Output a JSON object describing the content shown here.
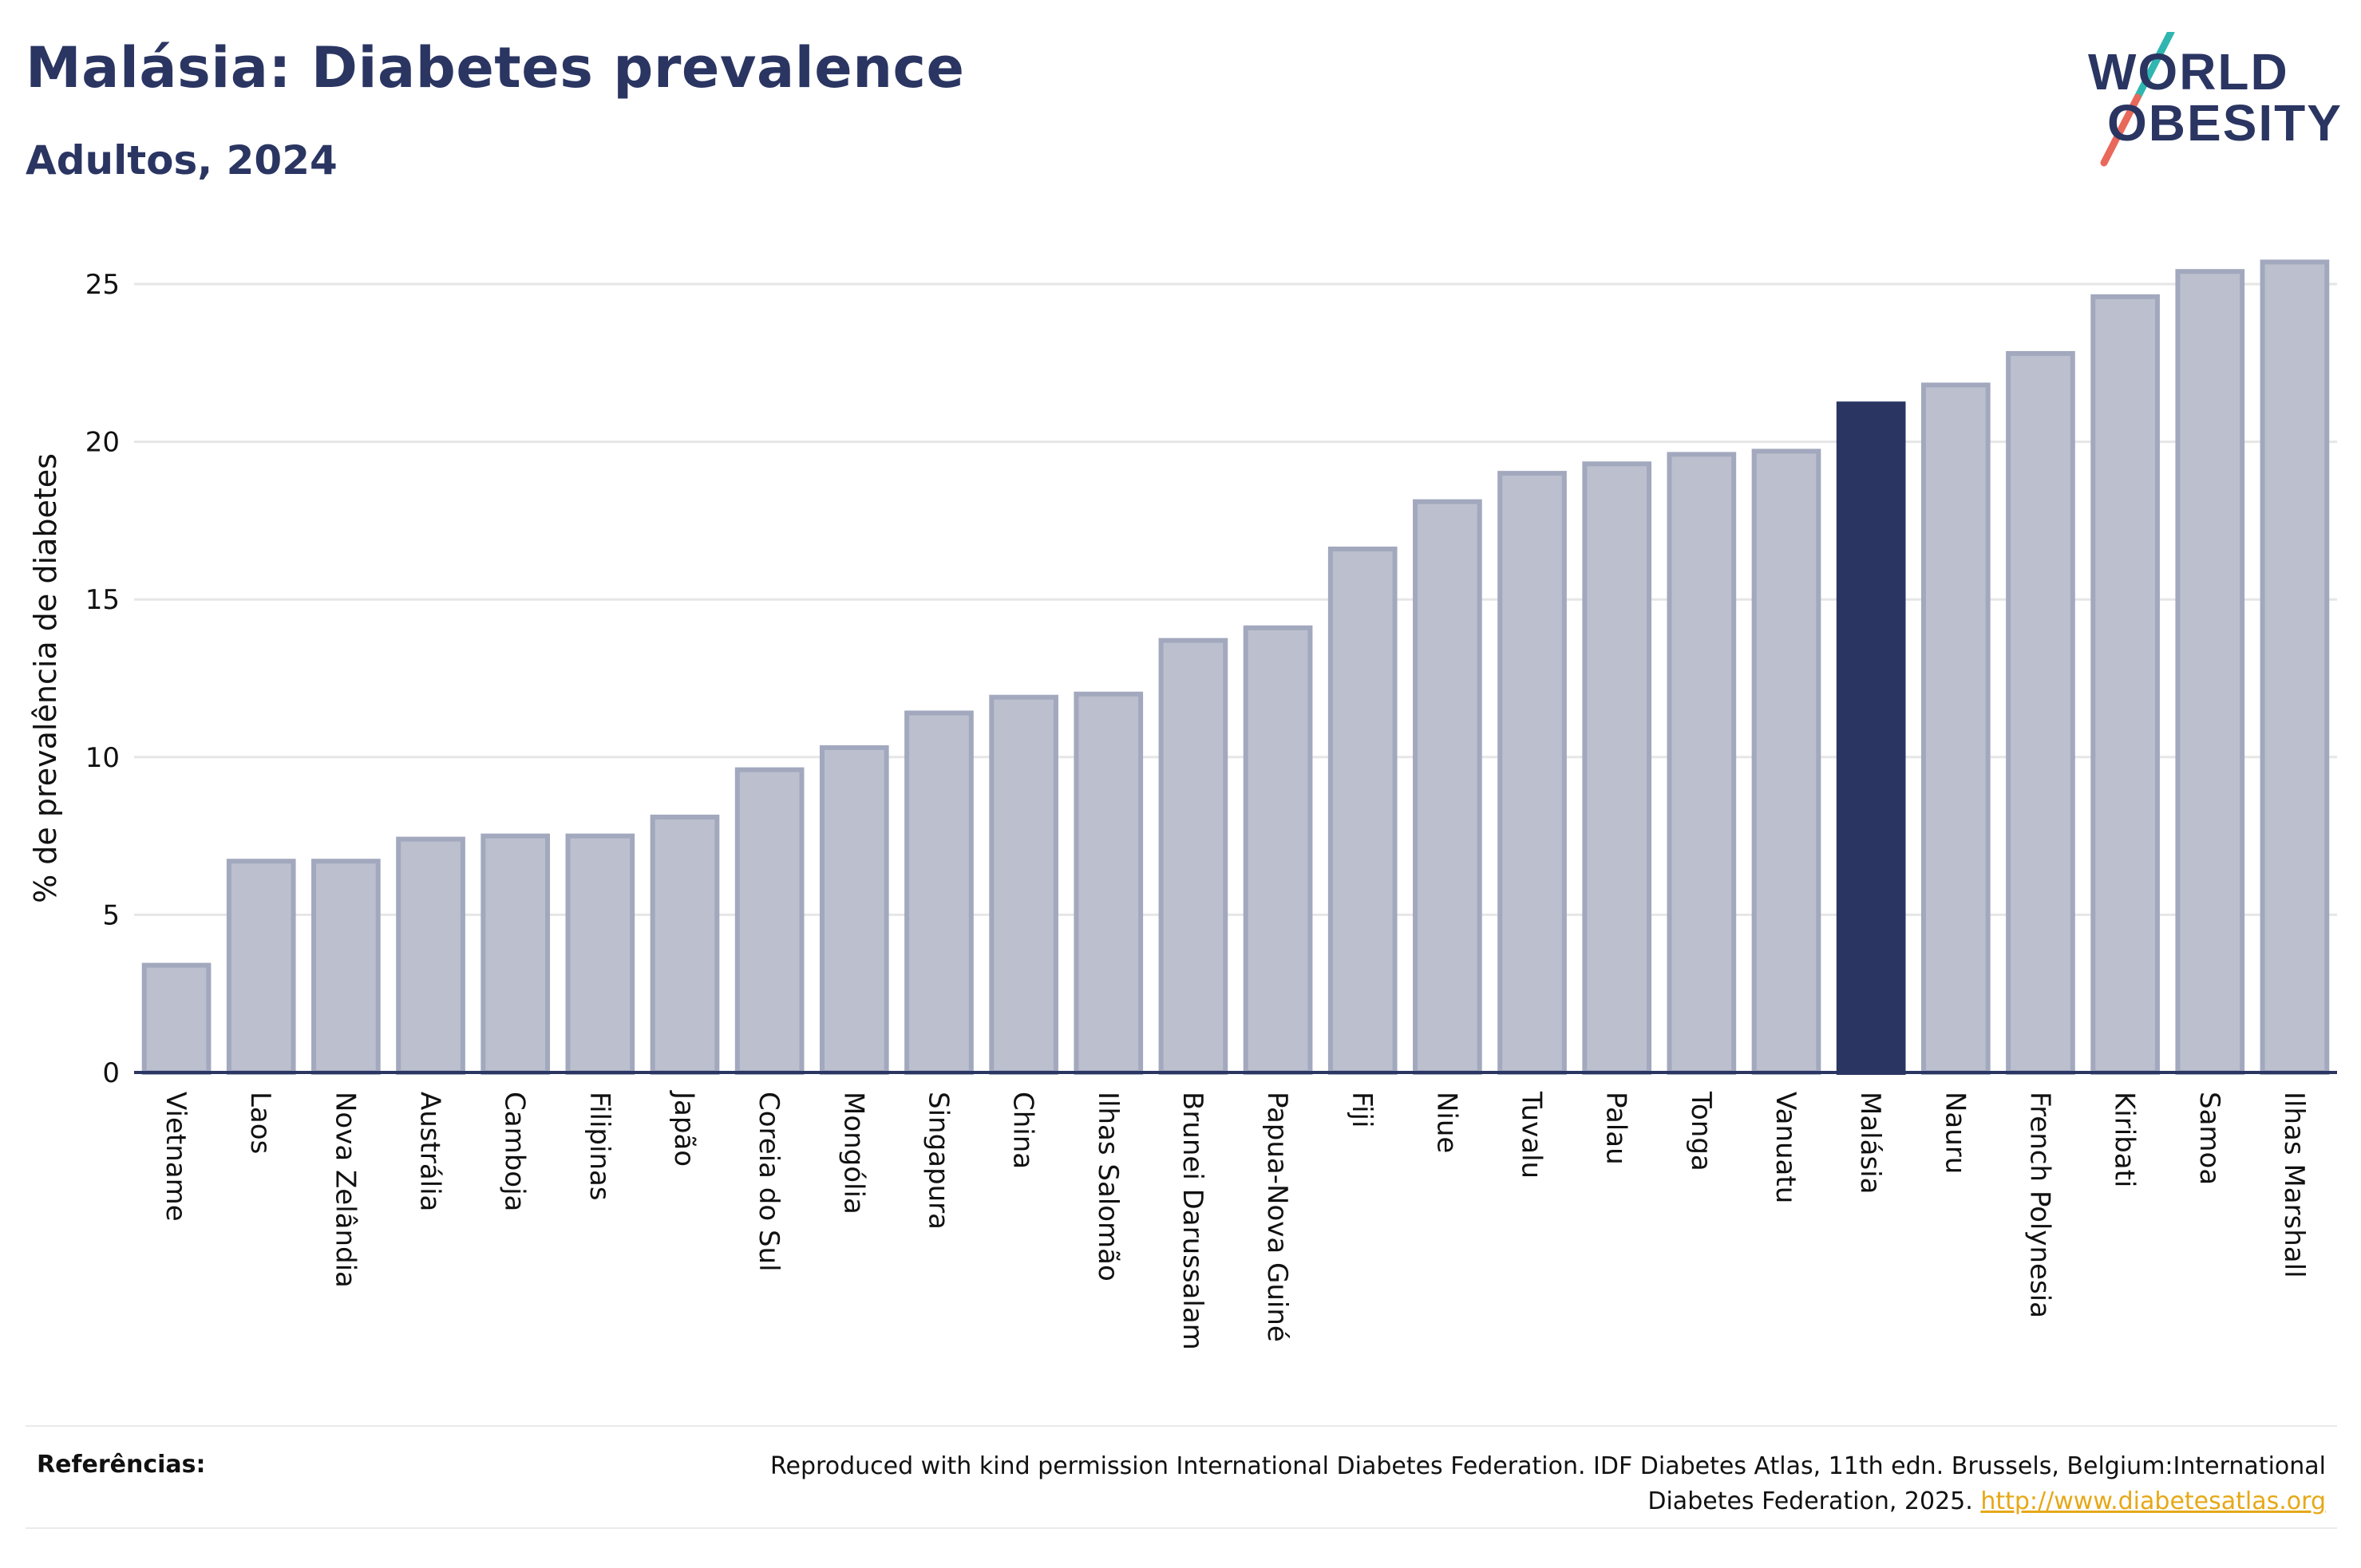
{
  "header": {
    "title": "Malásia: Diabetes prevalence",
    "subtitle": "Adultos, 2024"
  },
  "logo": {
    "line1": "WORLD",
    "line2": "OBESITY",
    "colors": {
      "text": "#2a3562",
      "slash_top": "#2fb6b0",
      "slash_bottom": "#e8685a"
    }
  },
  "footer": {
    "label": "Referências:",
    "text": "Reproduced with kind permission International Diabetes Federation. IDF Diabetes Atlas, 11th edn. Brussels, Belgium:International Diabetes Federation, 2025.",
    "link": "http://www.diabetesatlas.org"
  },
  "colors": {
    "bar": "#bcc0ce",
    "bar_border": "#a2a8bd",
    "highlight": "#2a3562",
    "grid": "#e6e6e6",
    "axis": "#2a3562"
  },
  "chart_data": {
    "type": "bar",
    "title": "Malásia: Diabetes prevalence",
    "subtitle": "Adultos, 2024",
    "xlabel": "",
    "ylabel": "% de prevalência de diabetes",
    "ylim": [
      0,
      26
    ],
    "yticks": [
      0,
      5,
      10,
      15,
      20,
      25
    ],
    "grid": true,
    "highlight": "Malásia",
    "categories": [
      "Vietname",
      "Laos",
      "Nova Zelândia",
      "Austrália",
      "Camboja",
      "Filipinas",
      "Japão",
      "Coreia do Sul",
      "Mongólia",
      "Singapura",
      "China",
      "Ilhas Salomão",
      "Brunei Darussalam",
      "Papua-Nova Guiné",
      "Fiji",
      "Niue",
      "Tuvalu",
      "Palau",
      "Tonga",
      "Vanuatu",
      "Malásia",
      "Nauru",
      "French Polynesia",
      "Kiribati",
      "Samoa",
      "Ilhas Marshall"
    ],
    "values": [
      3.4,
      6.7,
      6.7,
      7.4,
      7.5,
      7.5,
      8.1,
      9.6,
      10.3,
      11.4,
      11.9,
      12.0,
      13.7,
      14.1,
      16.6,
      18.1,
      19.0,
      19.3,
      19.6,
      19.7,
      21.2,
      21.8,
      22.8,
      24.6,
      25.4,
      25.7
    ]
  }
}
